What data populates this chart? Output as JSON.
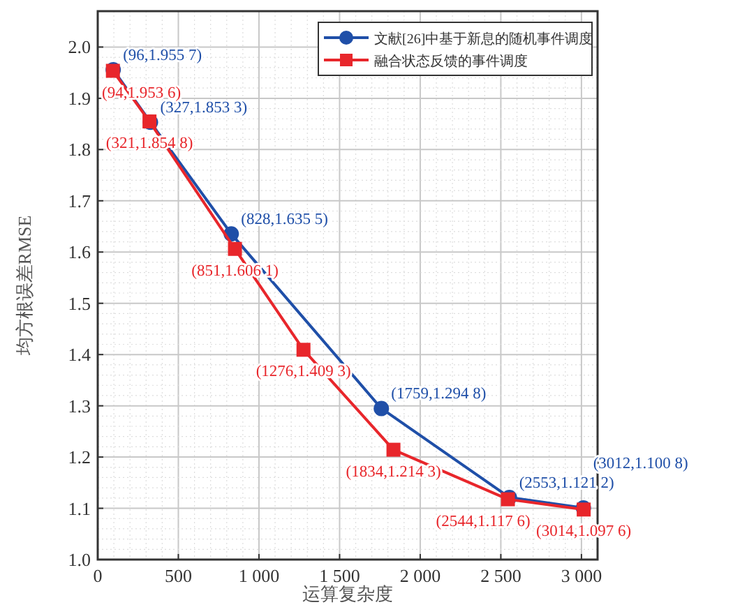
{
  "chart_data": {
    "type": "line",
    "xlabel": "运算复杂度",
    "ylabel": "均方根误差RMSE",
    "xlim": [
      0,
      3100
    ],
    "xticks": [
      0,
      500,
      {
        "value": 1000,
        "label": "1 000"
      },
      {
        "value": 1500,
        "label": "1 500"
      },
      {
        "value": 2000,
        "label": "2 000"
      },
      {
        "value": 2500,
        "label": "2 500"
      },
      {
        "value": 3000,
        "label": "3 000"
      }
    ],
    "ylim": [
      1.0,
      2.07
    ],
    "yticks": [
      {
        "value": 1.0,
        "label": "1.0"
      },
      1.1,
      1.2,
      1.3,
      1.4,
      1.5,
      1.6,
      1.7,
      1.8,
      1.9,
      {
        "value": 2.0,
        "label": "2.0"
      }
    ],
    "grid": true,
    "legend": "top right",
    "line_style": "solid",
    "series": [
      {
        "name": "文献[26]中基于新息的随机事件调度",
        "color": "#1f4fa8",
        "marker": "circle",
        "x": [
          96,
          327,
          828,
          1759,
          2553,
          3012
        ],
        "values": [
          1.9557,
          1.8533,
          1.6355,
          1.2948,
          1.1212,
          1.1008
        ],
        "value_labels": [
          "(96,1.955 7)",
          "(327,1.853 3)",
          "(828,1.635 5)",
          "(1759,1.294 8)",
          "(2553,1.121 2)",
          "(3012,1.100 8)"
        ]
      },
      {
        "name": "融合状态反馈的事件调度",
        "color": "#e8262b",
        "marker": "square",
        "x": [
          94,
          321,
          851,
          1276,
          1834,
          2544,
          3014
        ],
        "values": [
          1.9536,
          1.8548,
          1.6061,
          1.4093,
          1.2143,
          1.1176,
          1.0976
        ],
        "value_labels": [
          "(94,1.953 6)",
          "(321,1.854 8)",
          "(851,1.606 1)",
          "(1276,1.409 3)",
          "(1834,1.214 3)",
          "(2544,1.117 6)",
          "(3014,1.097 6)"
        ]
      }
    ]
  }
}
